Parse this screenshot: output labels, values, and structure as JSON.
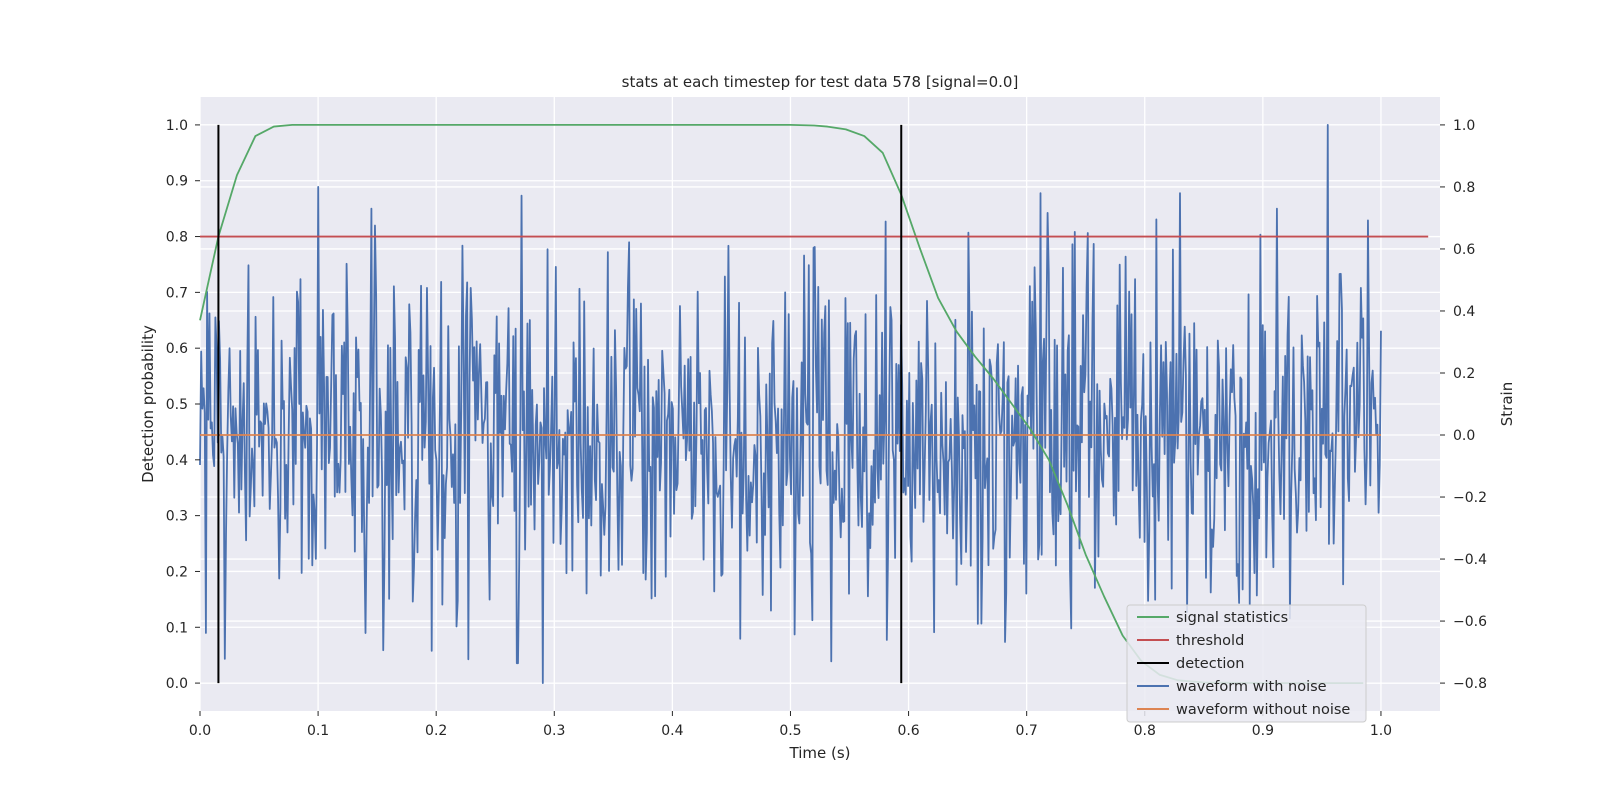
{
  "chart_data": {
    "type": "line",
    "title": "stats at each timestep for test data 578 [signal=0.0]",
    "xlabel": "Time (s)",
    "ylabel": "Detection probability",
    "ylabel_right": "Strain",
    "xlim": [
      0.0,
      1.05
    ],
    "ylim": [
      -0.05,
      1.05
    ],
    "ylim_right": [
      -0.89,
      1.09
    ],
    "xticks": [
      0.0,
      0.1,
      0.2,
      0.3,
      0.4,
      0.5,
      0.6,
      0.7,
      0.8,
      0.9,
      1.0
    ],
    "xtick_labels": [
      "0.0",
      "0.1",
      "0.2",
      "0.3",
      "0.4",
      "0.5",
      "0.6",
      "0.7",
      "0.8",
      "0.9",
      "1.0"
    ],
    "yticks": [
      0.0,
      0.1,
      0.2,
      0.3,
      0.4,
      0.5,
      0.6,
      0.7,
      0.8,
      0.9,
      1.0
    ],
    "ytick_labels": [
      "0.0",
      "0.1",
      "0.2",
      "0.3",
      "0.4",
      "0.5",
      "0.6",
      "0.7",
      "0.8",
      "0.9",
      "1.0"
    ],
    "yticks_right": [
      -0.8,
      -0.6,
      -0.4,
      -0.2,
      0.0,
      0.2,
      0.4,
      0.6,
      0.8,
      1.0
    ],
    "ytick_labels_right": [
      "−0.8",
      "−0.6",
      "−0.4",
      "−0.2",
      "0.0",
      "0.2",
      "0.4",
      "0.6",
      "0.8",
      "1.0"
    ],
    "grid": true,
    "legend_position": "bottom-right",
    "series": [
      {
        "name": "signal statistics",
        "color": "#55a868",
        "axis": "left",
        "x": [
          0.0,
          0.0156,
          0.0313,
          0.0469,
          0.0625,
          0.0781,
          0.0938,
          0.5,
          0.52,
          0.5313,
          0.5469,
          0.5625,
          0.5781,
          0.5938,
          0.6094,
          0.625,
          0.6406,
          0.6563,
          0.6719,
          0.6875,
          0.7031,
          0.7188,
          0.7344,
          0.75,
          0.7656,
          0.7813,
          0.7969,
          0.8125,
          0.8281,
          0.85,
          0.9,
          0.95,
          0.985
        ],
        "y": [
          0.65,
          0.8,
          0.91,
          0.98,
          0.997,
          1.0,
          1.0,
          1.0,
          0.999,
          0.997,
          0.992,
          0.98,
          0.95,
          0.875,
          0.78,
          0.69,
          0.63,
          0.585,
          0.545,
          0.5,
          0.455,
          0.4,
          0.32,
          0.23,
          0.155,
          0.085,
          0.04,
          0.015,
          0.005,
          0.001,
          0.0,
          0.0,
          0.0
        ]
      },
      {
        "name": "threshold",
        "color": "#c44e52",
        "axis": "left",
        "x": [
          0.0,
          1.04
        ],
        "y": [
          0.8,
          0.8
        ]
      },
      {
        "name": "detection",
        "color": "#000000",
        "axis": "left",
        "type": "vlines",
        "x": [
          0.0156,
          0.5938
        ],
        "y": [
          0.0,
          1.0
        ]
      },
      {
        "name": "waveform with noise",
        "color": "#4c72b0",
        "axis": "right",
        "type": "noise",
        "x_range": [
          0.0,
          1.0
        ],
        "num_points": 1000,
        "mean": 0.0,
        "std": 0.28,
        "max": 1.0,
        "min": -0.8,
        "peaks": [
          {
            "x": 0.1,
            "y": 0.8
          },
          {
            "x": 0.145,
            "y": 0.73
          },
          {
            "x": 0.29,
            "y": -0.8
          },
          {
            "x": 0.955,
            "y": 1.0
          },
          {
            "x": 0.912,
            "y": 0.73
          },
          {
            "x": 0.535,
            "y": -0.73
          }
        ]
      },
      {
        "name": "waveform without noise",
        "color": "#dd8452",
        "axis": "right",
        "x": [
          0.0,
          1.0
        ],
        "y": [
          0.0,
          0.0
        ]
      }
    ]
  }
}
